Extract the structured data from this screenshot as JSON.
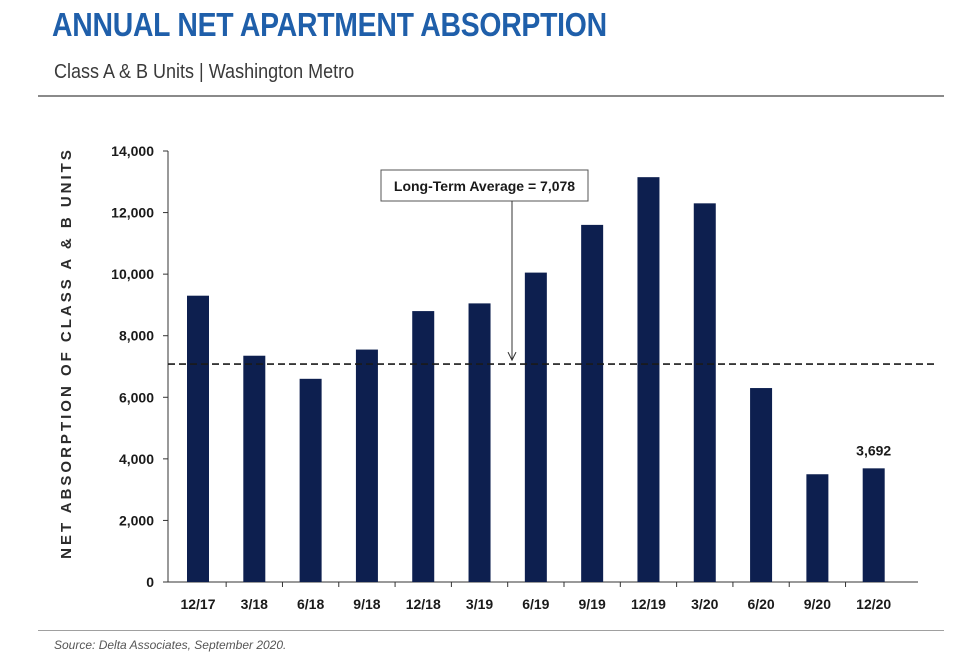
{
  "header": {
    "title": "ANNUAL NET APARTMENT ABSORPTION",
    "subtitle": "Class A & B Units | Washington Metro"
  },
  "footer": {
    "source": "Source: Delta Associates, September 2020."
  },
  "colors": {
    "title": "#1f5faa",
    "bar": "#0d1f4f",
    "average_line": "#1a1a1a"
  },
  "chart_data": {
    "type": "bar",
    "title": "ANNUAL NET APARTMENT ABSORPTION",
    "subtitle": "Class A & B Units | Washington Metro",
    "xlabel": "",
    "ylabel": "NET ABSORPTION OF CLASS A & B UNITS",
    "categories": [
      "12/17",
      "3/18",
      "6/18",
      "9/18",
      "12/18",
      "3/19",
      "6/19",
      "9/19",
      "12/19",
      "3/20",
      "6/20",
      "9/20",
      "12/20"
    ],
    "values": [
      9300,
      7350,
      6600,
      7550,
      8800,
      9050,
      10050,
      11600,
      13150,
      12300,
      6300,
      3500,
      3692
    ],
    "ylim": [
      0,
      14000
    ],
    "yticks": [
      0,
      2000,
      4000,
      6000,
      8000,
      10000,
      12000,
      14000
    ],
    "ytick_labels": [
      "0",
      "2,000",
      "4,000",
      "6,000",
      "8,000",
      "10,000",
      "12,000",
      "14,000"
    ],
    "data_labels": [
      {
        "category": "12/20",
        "text": "3,692"
      }
    ],
    "reference_line": {
      "value": 7078,
      "style": "dashed",
      "label": "Long-Term Average = 7,078"
    },
    "grid": false,
    "legend": "none"
  }
}
